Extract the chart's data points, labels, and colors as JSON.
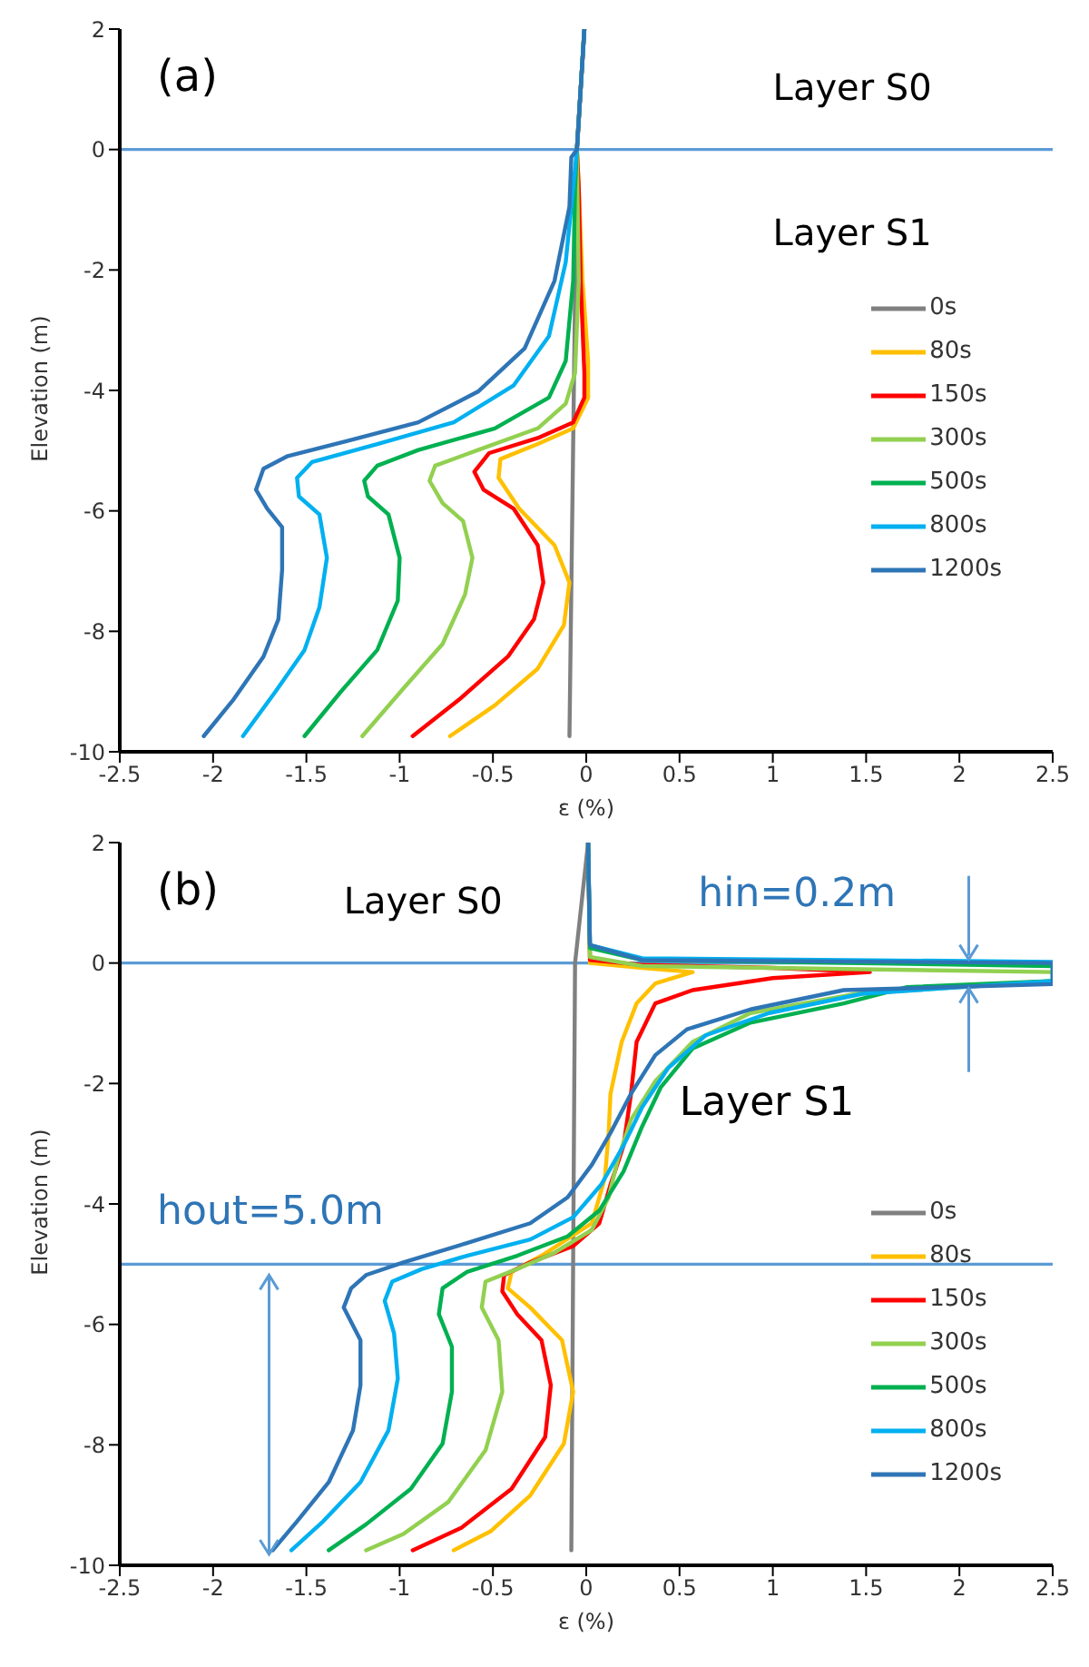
{
  "chart_data": [
    {
      "type": "line",
      "xlabel": "ε (%)",
      "ylabel": "Elevation (m)",
      "annotations": [
        "(a)",
        "Layer S0",
        "Layer S1"
      ],
      "xlim": [
        -2.5,
        2.5
      ],
      "xticks": [
        -2.5,
        -2,
        -1.5,
        -1,
        -0.5,
        0,
        0.5,
        1,
        1.5,
        2,
        2.5
      ],
      "ylim": [
        -10,
        2
      ],
      "yticks": [
        -10,
        -8,
        -6,
        -4,
        -2,
        0,
        2
      ],
      "legend": "right",
      "marker": "none",
      "line_style": "solid",
      "ref_lines": [
        {
          "axis": "y",
          "value": 0,
          "color": "#5b9bd5"
        }
      ],
      "series": [
        {
          "name": "0s",
          "color": "#808080",
          "x": [
            -0.09,
            -0.05,
            -0.01
          ],
          "values": [
            -9.74,
            0,
            2
          ]
        },
        {
          "name": "80s",
          "color": "#ffc000",
          "x": [
            -0.73,
            -0.49,
            -0.26,
            -0.12,
            -0.09,
            -0.17,
            -0.36,
            -0.47,
            -0.46,
            -0.26,
            -0.07,
            0.01,
            0.01,
            -0.02,
            -0.04,
            -0.05,
            -0.01
          ],
          "values": [
            -9.74,
            -9.23,
            -8.62,
            -7.9,
            -7.19,
            -6.57,
            -5.96,
            -5.45,
            -5.14,
            -4.89,
            -4.63,
            -4.12,
            -3.51,
            -2.18,
            -0.64,
            0,
            2
          ]
        },
        {
          "name": "150s",
          "color": "#ff0000",
          "x": [
            -0.93,
            -0.68,
            -0.42,
            -0.28,
            -0.23,
            -0.26,
            -0.39,
            -0.55,
            -0.6,
            -0.52,
            -0.26,
            -0.07,
            -0.01,
            -0.01,
            -0.03,
            -0.04,
            -0.05,
            -0.01
          ],
          "values": [
            -9.74,
            -9.13,
            -8.42,
            -7.8,
            -7.19,
            -6.57,
            -5.96,
            -5.65,
            -5.35,
            -5.04,
            -4.79,
            -4.53,
            -4.12,
            -3.71,
            -2.18,
            -0.64,
            0,
            2
          ]
        },
        {
          "name": "300s",
          "color": "#92d050",
          "x": [
            -1.2,
            -1.0,
            -0.77,
            -0.65,
            -0.61,
            -0.66,
            -0.77,
            -0.84,
            -0.81,
            -0.58,
            -0.26,
            -0.11,
            -0.06,
            -0.04,
            -0.05,
            -0.01
          ],
          "values": [
            -9.74,
            -9.02,
            -8.21,
            -7.39,
            -6.78,
            -6.17,
            -5.87,
            -5.5,
            -5.25,
            -4.99,
            -4.63,
            -4.22,
            -3.71,
            -2.18,
            0,
            2
          ]
        },
        {
          "name": "500s",
          "color": "#00b050",
          "x": [
            -1.51,
            -1.32,
            -1.12,
            -1.01,
            -1.0,
            -1.06,
            -1.17,
            -1.19,
            -1.12,
            -0.9,
            -0.49,
            -0.2,
            -0.11,
            -0.07,
            -0.06,
            -0.05,
            -0.01
          ],
          "values": [
            -9.74,
            -9.02,
            -8.31,
            -7.49,
            -6.78,
            -6.06,
            -5.76,
            -5.5,
            -5.25,
            -4.99,
            -4.63,
            -4.12,
            -3.51,
            -2.18,
            -0.64,
            0,
            2
          ]
        },
        {
          "name": "800s",
          "color": "#00b0f0",
          "x": [
            -1.84,
            -1.67,
            -1.51,
            -1.43,
            -1.39,
            -1.43,
            -1.54,
            -1.55,
            -1.47,
            -1.12,
            -0.71,
            -0.39,
            -0.2,
            -0.11,
            -0.07,
            -0.05,
            -0.01
          ],
          "values": [
            -9.74,
            -9.02,
            -8.31,
            -7.6,
            -6.78,
            -6.06,
            -5.76,
            -5.45,
            -5.19,
            -4.89,
            -4.53,
            -3.92,
            -3.1,
            -1.87,
            -0.64,
            0,
            2
          ]
        },
        {
          "name": "1200s",
          "color": "#2e75b6",
          "x": [
            -2.05,
            -1.89,
            -1.73,
            -1.65,
            -1.63,
            -1.63,
            -1.71,
            -1.77,
            -1.73,
            -1.6,
            -1.28,
            -0.9,
            -0.58,
            -0.33,
            -0.17,
            -0.09,
            -0.08,
            -0.05,
            -0.01
          ],
          "values": [
            -9.74,
            -9.13,
            -8.42,
            -7.8,
            -6.98,
            -6.27,
            -5.96,
            -5.65,
            -5.3,
            -5.09,
            -4.84,
            -4.53,
            -4.02,
            -3.3,
            -2.18,
            -0.95,
            -0.13,
            0,
            2
          ]
        }
      ]
    },
    {
      "type": "line",
      "xlabel": "ε (%)",
      "ylabel": "Elevation (m)",
      "annotations": [
        "(b)",
        "Layer S0",
        "Layer S1",
        "hin=0.2m",
        {
          "text": "hout=5.0m",
          "x": -1.7,
          "y": -5
        }
      ],
      "xlim": [
        -2.5,
        2.5
      ],
      "xticks": [
        -2.5,
        -2,
        -1.5,
        -1,
        -0.5,
        0,
        0.5,
        1,
        1.5,
        2,
        2.5
      ],
      "ylim": [
        -10,
        2
      ],
      "yticks": [
        -10,
        -8,
        -6,
        -4,
        -2,
        0,
        2
      ],
      "legend": "right",
      "marker": "none",
      "line_style": "solid",
      "ref_lines": [
        {
          "axis": "y",
          "value": 0,
          "color": "#5b9bd5"
        },
        {
          "axis": "y",
          "value": -5,
          "color": "#5b9bd5"
        }
      ],
      "series": [
        {
          "name": "0s",
          "color": "#808080",
          "x": [
            -0.08,
            -0.06,
            0.01
          ],
          "values": [
            -9.75,
            0,
            2
          ]
        },
        {
          "name": "80s",
          "color": "#ffc000",
          "x": [
            -0.71,
            -0.51,
            -0.3,
            -0.12,
            -0.07,
            -0.13,
            -0.3,
            -0.42,
            -0.4,
            -0.24,
            0.03,
            0.1,
            0.12,
            0.13,
            0.19,
            0.27,
            0.37,
            0.57,
            0.3,
            0.02,
            0.01
          ],
          "values": [
            -9.75,
            -9.43,
            -8.84,
            -7.98,
            -7.12,
            -6.26,
            -5.72,
            -5.4,
            -5.13,
            -4.86,
            -4.32,
            -3.57,
            -2.82,
            -2.17,
            -1.31,
            -0.67,
            -0.34,
            -0.15,
            -0.08,
            0,
            2
          ]
        },
        {
          "name": "150s",
          "color": "#ff0000",
          "x": [
            -0.93,
            -0.67,
            -0.4,
            -0.22,
            -0.19,
            -0.24,
            -0.37,
            -0.45,
            -0.44,
            -0.3,
            -0.07,
            0.07,
            0.13,
            0.2,
            0.24,
            0.27,
            0.37,
            0.57,
            1.0,
            1.52,
            1.0,
            0.3,
            0.02,
            0.01
          ],
          "values": [
            -9.75,
            -9.38,
            -8.73,
            -7.87,
            -7.01,
            -6.26,
            -5.83,
            -5.45,
            -5.18,
            -4.97,
            -4.7,
            -4.32,
            -3.68,
            -3.03,
            -2.17,
            -1.31,
            -0.67,
            -0.45,
            -0.25,
            -0.15,
            -0.08,
            -0.03,
            0.05,
            2
          ]
        },
        {
          "name": "300s",
          "color": "#92d050",
          "x": [
            -1.18,
            -0.98,
            -0.74,
            -0.54,
            -0.45,
            -0.47,
            -0.56,
            -0.54,
            -0.37,
            -0.17,
            0.03,
            0.12,
            0.17,
            0.24,
            0.37,
            0.57,
            0.88,
            1.45,
            2.5,
            2.5,
            0.3,
            0.02,
            0.01
          ],
          "values": [
            -9.75,
            -9.48,
            -8.95,
            -8.09,
            -7.12,
            -6.26,
            -5.72,
            -5.29,
            -5.08,
            -4.81,
            -4.43,
            -3.89,
            -3.25,
            -2.6,
            -1.96,
            -1.31,
            -0.83,
            -0.51,
            -0.3,
            -0.15,
            -0.05,
            0.1,
            2
          ]
        },
        {
          "name": "500s",
          "color": "#00b050",
          "x": [
            -1.38,
            -1.18,
            -0.94,
            -0.77,
            -0.72,
            -0.72,
            -0.79,
            -0.77,
            -0.64,
            -0.37,
            -0.1,
            0.07,
            0.2,
            0.3,
            0.4,
            0.57,
            0.88,
            1.38,
            1.72,
            2.5,
            2.5,
            0.3,
            0.02,
            0.01
          ],
          "values": [
            -9.75,
            -9.32,
            -8.73,
            -7.98,
            -7.12,
            -6.37,
            -5.83,
            -5.4,
            -5.13,
            -4.86,
            -4.54,
            -4.11,
            -3.46,
            -2.71,
            -2.06,
            -1.42,
            -0.99,
            -0.67,
            -0.4,
            -0.3,
            -0.05,
            0.05,
            0.25,
            2
          ]
        },
        {
          "name": "800s",
          "color": "#00b0f0",
          "x": [
            -1.58,
            -1.41,
            -1.21,
            -1.06,
            -1.01,
            -1.03,
            -1.08,
            -1.04,
            -0.88,
            -0.64,
            -0.3,
            -0.07,
            0.08,
            0.2,
            0.3,
            0.44,
            0.64,
            0.98,
            1.48,
            2.5,
            2.5,
            0.3,
            0.02,
            0.01
          ],
          "values": [
            -9.75,
            -9.27,
            -8.62,
            -7.76,
            -6.9,
            -6.15,
            -5.61,
            -5.29,
            -5.08,
            -4.86,
            -4.59,
            -4.22,
            -3.68,
            -3.03,
            -2.39,
            -1.74,
            -1.2,
            -0.83,
            -0.51,
            -0.3,
            0.02,
            0.08,
            0.3,
            2
          ]
        },
        {
          "name": "1200s",
          "color": "#2e75b6",
          "x": [
            -1.68,
            -1.55,
            -1.38,
            -1.25,
            -1.21,
            -1.21,
            -1.3,
            -1.26,
            -1.18,
            -0.98,
            -0.64,
            -0.3,
            -0.1,
            0.03,
            0.13,
            0.24,
            0.37,
            0.54,
            0.88,
            1.38,
            2.5,
            2.5,
            0.3,
            0.02,
            0.01
          ],
          "values": [
            -9.75,
            -9.27,
            -8.62,
            -7.76,
            -7.01,
            -6.26,
            -5.72,
            -5.4,
            -5.18,
            -4.97,
            -4.65,
            -4.32,
            -3.89,
            -3.35,
            -2.82,
            -2.17,
            -1.53,
            -1.1,
            -0.77,
            -0.45,
            -0.35,
            0,
            0.05,
            0.3,
            2
          ]
        }
      ]
    }
  ]
}
